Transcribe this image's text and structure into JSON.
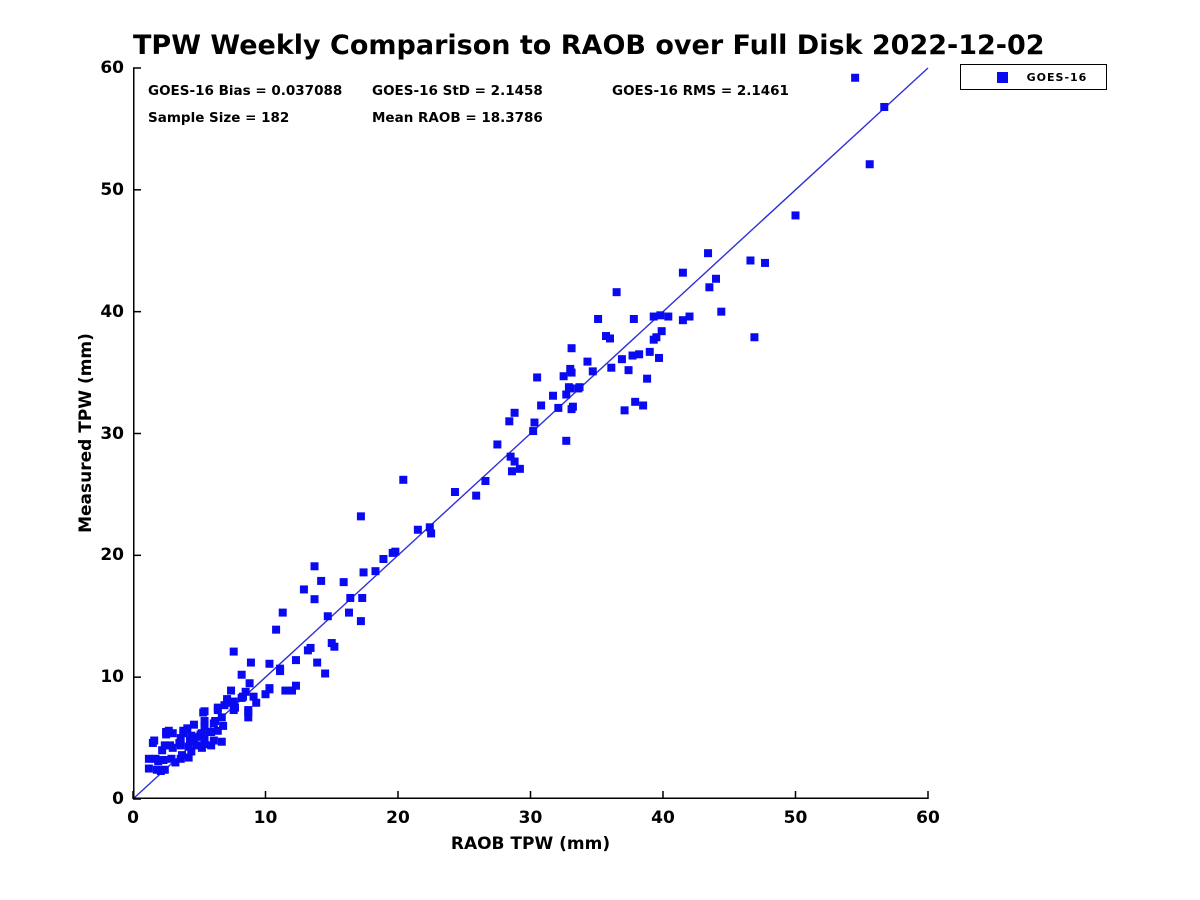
{
  "window": {
    "background": "#ffffff"
  },
  "colors": {
    "marker": "#0909f2",
    "ref_line": "#3030d8",
    "axis": "#000000",
    "text": "#000000",
    "legend_border": "#000000"
  },
  "stats": {
    "bias": "GOES-16 Bias = 0.037088",
    "std": "GOES-16 StD = 2.1458",
    "rms": "GOES-16 RMS = 2.1461",
    "sample_size": "Sample Size = 182",
    "mean_raob": "Mean RAOB = 18.3786"
  },
  "legend": {
    "items": [
      {
        "label": "GOES-16",
        "marker_color": "#0909f2",
        "marker": "square"
      }
    ],
    "position": "top-right-outside"
  },
  "chart_data": {
    "type": "scatter",
    "title": "TPW Weekly Comparison to RAOB over Full Disk 2022-12-02",
    "xlabel": "RAOB TPW (mm)",
    "ylabel": "Measured TPW (mm)",
    "xlim": [
      0,
      60
    ],
    "ylim": [
      0,
      60
    ],
    "x_ticks": [
      0,
      10,
      20,
      30,
      40,
      50,
      60
    ],
    "y_ticks": [
      0,
      10,
      20,
      30,
      40,
      50,
      60
    ],
    "grid": false,
    "legend_position": "top-right-outside",
    "annotations": [
      "GOES-16 Bias = 0.037088",
      "GOES-16 StD = 2.1458",
      "GOES-16 RMS = 2.1461",
      "Sample Size = 182",
      "Mean RAOB = 18.3786"
    ],
    "reference_line": {
      "type": "identity",
      "from": [
        0,
        0
      ],
      "to": [
        60,
        60
      ]
    },
    "series": [
      {
        "name": "GOES-16",
        "marker": "square",
        "marker_size_px": 8,
        "points": [
          [
            1.2,
            2.5
          ],
          [
            1.8,
            2.4
          ],
          [
            2.4,
            2.4
          ],
          [
            1.2,
            3.3
          ],
          [
            1.7,
            3.3
          ],
          [
            1.9,
            3.1
          ],
          [
            2.3,
            3.2
          ],
          [
            2.9,
            3.3
          ],
          [
            3.6,
            3.3
          ],
          [
            3.7,
            3.6
          ],
          [
            4.2,
            3.4
          ],
          [
            4.4,
            3.9
          ],
          [
            2.2,
            4.0
          ],
          [
            2.4,
            4.4
          ],
          [
            2.8,
            4.4
          ],
          [
            3.0,
            4.2
          ],
          [
            3.5,
            4.6
          ],
          [
            3.6,
            4.4
          ],
          [
            4.2,
            4.3
          ],
          [
            4.3,
            4.8
          ],
          [
            4.6,
            4.9
          ],
          [
            4.8,
            4.4
          ],
          [
            5.2,
            4.2
          ],
          [
            5.4,
            4.5
          ],
          [
            5.4,
            4.9
          ],
          [
            5.9,
            4.4
          ],
          [
            6.1,
            4.8
          ],
          [
            6.7,
            4.7
          ],
          [
            1.5,
            4.6
          ],
          [
            1.6,
            4.8
          ],
          [
            2.5,
            5.3
          ],
          [
            2.5,
            5.5
          ],
          [
            2.7,
            5.6
          ],
          [
            3.0,
            5.4
          ],
          [
            3.6,
            5.0
          ],
          [
            3.8,
            5.4
          ],
          [
            3.8,
            5.6
          ],
          [
            4.1,
            5.8
          ],
          [
            4.4,
            5.2
          ],
          [
            4.6,
            5.0
          ],
          [
            5.0,
            5.1
          ],
          [
            5.1,
            5.3
          ],
          [
            5.2,
            5.4
          ],
          [
            5.8,
            5.5
          ],
          [
            5.9,
            5.5
          ],
          [
            6.4,
            5.6
          ],
          [
            4.6,
            6.1
          ],
          [
            5.4,
            6.0
          ],
          [
            5.4,
            6.4
          ],
          [
            6.1,
            6.2
          ],
          [
            6.2,
            6.4
          ],
          [
            6.8,
            6.0
          ],
          [
            6.7,
            6.7
          ],
          [
            5.3,
            7.1
          ],
          [
            5.4,
            7.2
          ],
          [
            6.4,
            7.3
          ],
          [
            6.4,
            7.5
          ],
          [
            6.9,
            7.7
          ],
          [
            7.1,
            7.9
          ],
          [
            7.6,
            7.3
          ],
          [
            7.7,
            7.5
          ],
          [
            7.6,
            8.0
          ],
          [
            7.1,
            8.2
          ],
          [
            7.4,
            8.9
          ],
          [
            8.2,
            8.3
          ],
          [
            8.3,
            8.4
          ],
          [
            8.5,
            8.8
          ],
          [
            8.7,
            6.7
          ],
          [
            8.7,
            7.1
          ],
          [
            8.7,
            7.3
          ],
          [
            9.1,
            8.4
          ],
          [
            9.3,
            7.9
          ],
          [
            8.8,
            9.5
          ],
          [
            8.2,
            10.2
          ],
          [
            10.0,
            8.6
          ],
          [
            10.3,
            9.1
          ],
          [
            10.3,
            9.0
          ],
          [
            11.5,
            8.9
          ],
          [
            12.0,
            8.9
          ],
          [
            12.3,
            9.3
          ],
          [
            7.6,
            12.1
          ],
          [
            8.9,
            11.2
          ],
          [
            10.3,
            11.1
          ],
          [
            11.1,
            10.7
          ],
          [
            12.3,
            11.4
          ],
          [
            13.2,
            12.2
          ],
          [
            10.8,
            13.9
          ],
          [
            11.3,
            15.3
          ],
          [
            12.9,
            17.2
          ],
          [
            13.7,
            19.1
          ],
          [
            14.2,
            17.9
          ],
          [
            13.7,
            16.4
          ],
          [
            15.9,
            17.8
          ],
          [
            16.4,
            16.5
          ],
          [
            17.3,
            16.5
          ],
          [
            16.3,
            15.3
          ],
          [
            14.7,
            15.0
          ],
          [
            17.2,
            14.6
          ],
          [
            15.0,
            12.8
          ],
          [
            15.2,
            12.5
          ],
          [
            13.4,
            12.4
          ],
          [
            13.9,
            11.2
          ],
          [
            11.1,
            10.5
          ],
          [
            14.5,
            10.3
          ],
          [
            17.2,
            23.2
          ],
          [
            18.9,
            19.7
          ],
          [
            19.8,
            20.3
          ],
          [
            17.4,
            18.6
          ],
          [
            18.3,
            18.7
          ],
          [
            19.6,
            20.2
          ],
          [
            20.4,
            26.2
          ],
          [
            21.5,
            22.1
          ],
          [
            22.4,
            22.3
          ],
          [
            22.5,
            21.8
          ],
          [
            24.3,
            25.2
          ],
          [
            25.9,
            24.9
          ],
          [
            26.6,
            26.1
          ],
          [
            27.5,
            29.1
          ],
          [
            28.4,
            31.0
          ],
          [
            28.8,
            31.7
          ],
          [
            28.5,
            28.1
          ],
          [
            28.8,
            27.7
          ],
          [
            28.6,
            26.9
          ],
          [
            29.2,
            27.1
          ],
          [
            30.2,
            30.2
          ],
          [
            30.3,
            30.9
          ],
          [
            30.5,
            34.6
          ],
          [
            30.8,
            32.3
          ],
          [
            32.1,
            32.1
          ],
          [
            33.1,
            32.0
          ],
          [
            32.7,
            33.2
          ],
          [
            31.7,
            33.1
          ],
          [
            32.5,
            34.7
          ],
          [
            33.1,
            35.0
          ],
          [
            33.0,
            33.7
          ],
          [
            33.6,
            33.7
          ],
          [
            32.7,
            29.4
          ],
          [
            33.2,
            32.2
          ],
          [
            32.9,
            33.8
          ],
          [
            33.7,
            33.8
          ],
          [
            33.1,
            37.0
          ],
          [
            33.0,
            35.3
          ],
          [
            34.3,
            35.9
          ],
          [
            34.7,
            35.1
          ],
          [
            35.1,
            39.4
          ],
          [
            35.7,
            38.0
          ],
          [
            36.0,
            37.8
          ],
          [
            36.5,
            41.6
          ],
          [
            36.9,
            36.1
          ],
          [
            37.7,
            36.4
          ],
          [
            38.2,
            36.5
          ],
          [
            36.1,
            35.4
          ],
          [
            37.4,
            35.2
          ],
          [
            37.1,
            31.9
          ],
          [
            37.9,
            32.6
          ],
          [
            38.5,
            32.3
          ],
          [
            38.8,
            34.5
          ],
          [
            39.0,
            36.7
          ],
          [
            39.7,
            36.2
          ],
          [
            39.5,
            37.9
          ],
          [
            39.3,
            37.7
          ],
          [
            39.9,
            38.4
          ],
          [
            39.3,
            39.6
          ],
          [
            39.8,
            39.7
          ],
          [
            37.8,
            39.4
          ],
          [
            40.4,
            39.6
          ],
          [
            41.5,
            39.3
          ],
          [
            42.0,
            39.6
          ],
          [
            41.5,
            43.2
          ],
          [
            43.4,
            44.8
          ],
          [
            43.5,
            42.0
          ],
          [
            44.0,
            42.7
          ],
          [
            44.4,
            40.0
          ],
          [
            46.9,
            37.9
          ],
          [
            46.6,
            44.2
          ],
          [
            47.7,
            44.0
          ],
          [
            50.0,
            47.9
          ],
          [
            55.6,
            52.1
          ],
          [
            56.7,
            56.8
          ],
          [
            54.5,
            59.2
          ],
          [
            2.1,
            2.3
          ],
          [
            3.2,
            3.0
          ]
        ]
      }
    ]
  }
}
